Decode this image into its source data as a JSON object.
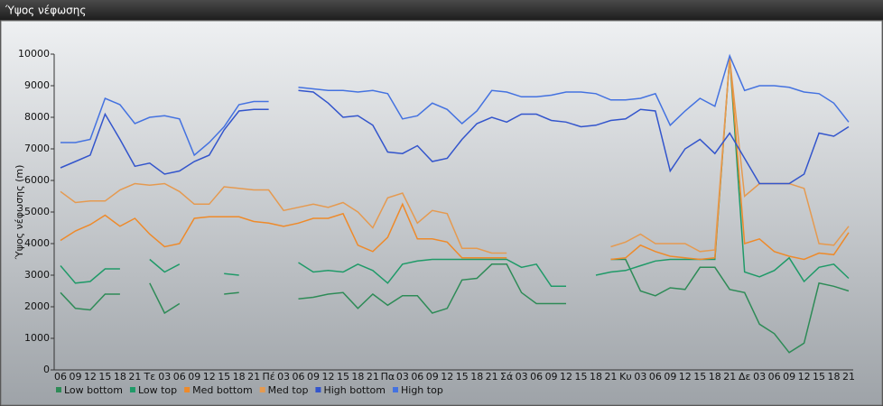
{
  "chart_data": {
    "type": "line",
    "title": "Ύψος νέφωσης",
    "y_label": "Ύψος νέφωσης (m)",
    "categories": [
      "06",
      "09",
      "12",
      "15",
      "18",
      "21",
      "Τε",
      "03",
      "06",
      "09",
      "12",
      "15",
      "18",
      "21",
      "Πέ",
      "03",
      "06",
      "09",
      "12",
      "15",
      "18",
      "21",
      "Πα",
      "03",
      "06",
      "09",
      "12",
      "15",
      "18",
      "21",
      "Σά",
      "03",
      "06",
      "09",
      "12",
      "15",
      "18",
      "21",
      "Κυ",
      "03",
      "06",
      "09",
      "12",
      "15",
      "18",
      "21",
      "Δε",
      "03",
      "06",
      "09",
      "12",
      "15",
      "18",
      "21"
    ],
    "ylim": [
      0,
      10000
    ],
    "yticks": [
      0,
      1000,
      2000,
      3000,
      4000,
      5000,
      6000,
      7000,
      8000,
      9000,
      10000
    ],
    "grid": false,
    "series": [
      {
        "name": "Low bottom",
        "color": "#2e8b57",
        "values": [
          2450,
          1950,
          1900,
          2400,
          2400,
          null,
          2750,
          1800,
          2100,
          null,
          null,
          2400,
          2450,
          null,
          null,
          null,
          2250,
          2300,
          2400,
          2450,
          1950,
          2400,
          2050,
          2350,
          2350,
          1800,
          1950,
          2850,
          2900,
          3350,
          3350,
          2450,
          2100,
          2100,
          2100,
          null,
          null,
          3500,
          3500,
          2500,
          2350,
          2600,
          2550,
          3250,
          3250,
          2550,
          2450,
          1450,
          1150,
          550,
          850,
          2750,
          2650,
          2500
        ]
      },
      {
        "name": "Low top",
        "color": "#1f9a68",
        "values": [
          3300,
          2750,
          2800,
          3200,
          3200,
          null,
          3500,
          3100,
          3350,
          null,
          null,
          3050,
          3000,
          null,
          null,
          null,
          3400,
          3100,
          3150,
          3100,
          3350,
          3150,
          2750,
          3350,
          3450,
          3500,
          3500,
          3500,
          3500,
          3500,
          3500,
          3250,
          3350,
          2650,
          2650,
          null,
          3000,
          3100,
          3150,
          3300,
          3450,
          3500,
          3500,
          3500,
          3500,
          9900,
          3100,
          2950,
          3150,
          3550,
          2800,
          3250,
          3350,
          2900
        ]
      },
      {
        "name": "Med bottom",
        "color": "#ee8a2a",
        "values": [
          4100,
          4400,
          4600,
          4900,
          4550,
          4800,
          4300,
          3900,
          4000,
          4800,
          4850,
          4850,
          4850,
          4700,
          4650,
          4550,
          4650,
          4800,
          4800,
          4950,
          3950,
          3750,
          4200,
          5250,
          4150,
          4150,
          4050,
          3550,
          3550,
          3550,
          3550,
          null,
          null,
          null,
          null,
          null,
          null,
          3500,
          3550,
          3950,
          3750,
          3600,
          3550,
          3500,
          3550,
          9900,
          4000,
          4150,
          3750,
          3600,
          3500,
          3700,
          3650,
          4350
        ]
      },
      {
        "name": "Med top",
        "color": "#e59a50",
        "values": [
          5650,
          5300,
          5350,
          5350,
          5700,
          5900,
          5850,
          5900,
          5650,
          5250,
          5250,
          5800,
          5750,
          5700,
          5700,
          5050,
          5150,
          5250,
          5150,
          5300,
          5000,
          4500,
          5450,
          5600,
          4650,
          5050,
          4950,
          3850,
          3850,
          3700,
          3700,
          null,
          null,
          null,
          null,
          null,
          null,
          3900,
          4050,
          4300,
          4000,
          4000,
          4000,
          3750,
          3800,
          9900,
          5500,
          5900,
          5900,
          5900,
          5750,
          4000,
          3950,
          4550
        ]
      },
      {
        "name": "High bottom",
        "color": "#3355cc",
        "values": [
          6400,
          6600,
          6800,
          8100,
          7300,
          6450,
          6550,
          6200,
          6300,
          6600,
          6800,
          7600,
          8200,
          8250,
          8250,
          null,
          8850,
          8800,
          8450,
          8000,
          8050,
          7750,
          6900,
          6850,
          7100,
          6600,
          6700,
          7300,
          7800,
          8000,
          7850,
          8100,
          8100,
          7900,
          7850,
          7700,
          7750,
          7900,
          7950,
          8250,
          8200,
          6300,
          7000,
          7300,
          6850,
          7500,
          6700,
          5900,
          5900,
          5900,
          6200,
          7500,
          7400,
          7700
        ]
      },
      {
        "name": "High top",
        "color": "#4472e0",
        "values": [
          7200,
          7200,
          7300,
          8600,
          8400,
          7800,
          8000,
          8050,
          7950,
          6800,
          7200,
          7700,
          8400,
          8500,
          8500,
          null,
          8950,
          8900,
          8850,
          8850,
          8800,
          8850,
          8750,
          7950,
          8050,
          8450,
          8250,
          7800,
          8200,
          8850,
          8800,
          8650,
          8650,
          8700,
          8800,
          8800,
          8750,
          8550,
          8550,
          8600,
          8750,
          7750,
          8200,
          8600,
          8350,
          9950,
          8850,
          9000,
          9000,
          8950,
          8800,
          8750,
          8450,
          7850
        ]
      }
    ]
  }
}
